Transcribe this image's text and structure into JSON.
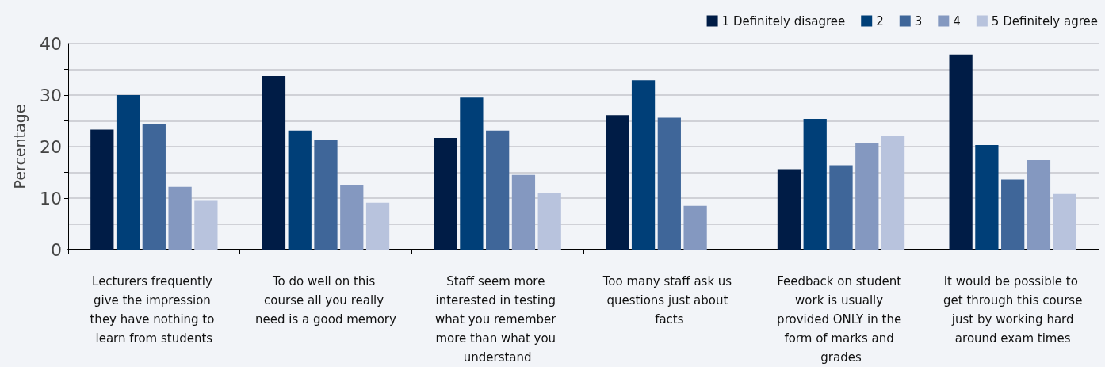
{
  "chart_data": {
    "type": "bar",
    "ylabel": "Percentage",
    "categories": [
      "Lecturers frequently give the impression they have nothing to learn from students",
      "To do well on this course all you really need is a good memory",
      "Staff seem more interested in testing what you remember more than what you understand",
      "Too many staff ask us questions just about facts",
      "Feedback on student work is usually provided ONLY in the form of marks and grades",
      "It would be possible to get through this course just by working hard around exam times"
    ],
    "series": [
      {
        "name": "1 Definitely disagree",
        "color": "#001c46",
        "values": [
          23.3,
          33.7,
          21.7,
          26.1,
          15.6,
          37.9
        ]
      },
      {
        "name": "2",
        "color": "#003f78",
        "values": [
          30.0,
          23.1,
          29.5,
          32.9,
          25.4,
          20.3
        ]
      },
      {
        "name": "3",
        "color": "#3f6699",
        "values": [
          24.4,
          21.4,
          23.1,
          25.6,
          16.4,
          13.6
        ]
      },
      {
        "name": "4",
        "color": "#8498c0",
        "values": [
          12.2,
          12.6,
          14.5,
          8.5,
          20.6,
          17.4
        ]
      },
      {
        "name": "5 Definitely agree",
        "color": "#b8c3dd",
        "values": [
          9.6,
          9.1,
          11.0,
          null,
          22.1,
          10.8
        ]
      }
    ],
    "ylim": [
      0,
      40
    ],
    "yticks": [
      0,
      {
        "value": 5,
        "label": null
      },
      10,
      {
        "value": 15,
        "label": null
      },
      20,
      {
        "value": 25,
        "label": null
      },
      30,
      {
        "value": 35,
        "label": null
      },
      40
    ],
    "grid": "y",
    "legend": "top right"
  }
}
